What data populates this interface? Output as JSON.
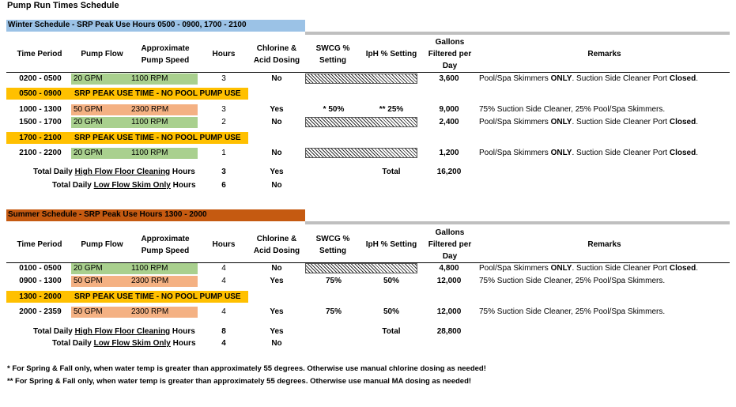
{
  "title": "Pump Run Times Schedule",
  "headers": {
    "time_period": "Time Period",
    "pump_flow": "Pump Flow",
    "pump_speed": "Approximate Pump Speed",
    "hours": "Hours",
    "chlorine": "Chlorine & Acid Dosing",
    "swcg": "SWCG % Setting",
    "iph": "IpH % Setting",
    "gallons": "Gallons Filtered per Day",
    "remarks": "Remarks"
  },
  "winter": {
    "banner": "Winter Schedule - SRP Peak Use Hours 0500 - 0900, 1700 - 2100",
    "banner_color": "#9bc2e6",
    "rows": [
      {
        "time": "0200 - 0500",
        "flow": "20 GPM",
        "speed": "1100 RPM",
        "hours": "3",
        "dosing": "No",
        "swcg": "",
        "iph": "",
        "gallons": "3,600",
        "remarks_pre": "Pool/Spa Skimmers ",
        "remarks_b1": "ONLY",
        "remarks_mid": ". Suction Side Cleaner Port ",
        "remarks_b2": "Closed",
        "remarks_post": "."
      },
      {
        "peak": "0500 - 0900",
        "peak_text": "SRP PEAK USE TIME - NO POOL PUMP USE"
      },
      {
        "time": "1000 - 1300",
        "flow": "50 GPM",
        "speed": "2300 RPM",
        "hours": "3",
        "dosing": "Yes",
        "swcg": "* 50%",
        "iph": "** 25%",
        "gallons": "9,000",
        "remarks_pre": "75% Suction Side Cleaner, 25% Pool/Spa Skimmers.",
        "remarks_b1": "",
        "remarks_mid": "",
        "remarks_b2": "",
        "remarks_post": ""
      },
      {
        "time": "1500 - 1700",
        "flow": "20 GPM",
        "speed": "1100 RPM",
        "hours": "2",
        "dosing": "No",
        "swcg": "",
        "iph": "",
        "gallons": "2,400",
        "remarks_pre": "Pool/Spa Skimmers ",
        "remarks_b1": "ONLY",
        "remarks_mid": ". Suction Side Cleaner Port ",
        "remarks_b2": "Closed",
        "remarks_post": "."
      },
      {
        "peak": "1700 - 2100",
        "peak_text": "SRP PEAK USE TIME - NO POOL PUMP USE"
      },
      {
        "time": "2100 - 2200",
        "flow": "20 GPM",
        "speed": "1100 RPM",
        "hours": "1",
        "dosing": "No",
        "swcg": "",
        "iph": "",
        "gallons": "1,200",
        "remarks_pre": "Pool/Spa Skimmers ",
        "remarks_b1": "ONLY",
        "remarks_mid": ". Suction Side Cleaner Port ",
        "remarks_b2": "Closed",
        "remarks_post": "."
      }
    ],
    "total_high_pre": "Total Daily ",
    "total_high_u": "High Flow Floor Cleaning",
    "total_high_post": " Hours",
    "total_high_hours": "3",
    "total_high_dosing": "Yes",
    "total_label": "Total",
    "total_gallons": "16,200",
    "total_low_pre": "Total Daily ",
    "total_low_u": "Low Flow Skim Only",
    "total_low_post": " Hours",
    "total_low_hours": "6",
    "total_low_dosing": "No"
  },
  "summer": {
    "banner": "Summer Schedule -  SRP Peak Use Hours 1300 - 2000",
    "banner_color": "#c55a11",
    "rows": [
      {
        "time": "0100 - 0500",
        "flow": "20 GPM",
        "speed": "1100 RPM",
        "hours": "4",
        "dosing": "No",
        "swcg": "",
        "iph": "",
        "gallons": "4,800",
        "remarks_pre": "Pool/Spa Skimmers ",
        "remarks_b1": "ONLY",
        "remarks_mid": ". Suction Side Cleaner Port ",
        "remarks_b2": "Closed",
        "remarks_post": "."
      },
      {
        "time": "0900 - 1300",
        "flow": "50 GPM",
        "speed": "2300 RPM",
        "hours": "4",
        "dosing": "Yes",
        "swcg": "75%",
        "iph": "50%",
        "gallons": "12,000",
        "remarks_pre": "75% Suction Side Cleaner, 25% Pool/Spa Skimmers.",
        "remarks_b1": "",
        "remarks_mid": "",
        "remarks_b2": "",
        "remarks_post": ""
      },
      {
        "peak": "1300 - 2000",
        "peak_text": "SRP PEAK USE TIME - NO POOL PUMP USE"
      },
      {
        "time": "2000 - 2359",
        "flow": "50 GPM",
        "speed": "2300 RPM",
        "hours": "4",
        "dosing": "Yes",
        "swcg": "75%",
        "iph": "50%",
        "gallons": "12,000",
        "remarks_pre": "75% Suction Side Cleaner, 25% Pool/Spa Skimmers.",
        "remarks_b1": "",
        "remarks_mid": "",
        "remarks_b2": "",
        "remarks_post": ""
      }
    ],
    "total_high_pre": "Total Daily ",
    "total_high_u": "High Flow Floor Cleaning",
    "total_high_post": " Hours",
    "total_high_hours": "8",
    "total_high_dosing": "Yes",
    "total_label": "Total",
    "total_gallons": "28,800",
    "total_low_pre": "Total Daily ",
    "total_low_u": "Low Flow Skim Only",
    "total_low_post": " Hours",
    "total_low_hours": "4",
    "total_low_dosing": "No"
  },
  "footnotes": [
    "* For Spring & Fall only, when water temp is greater than approximately 55 degrees. Otherwise use manual chlorine dosing  as needed!",
    "** For Spring & Fall only, when water temp is greater than approximately 55 degrees. Otherwise use manual MA dosing as needed!"
  ]
}
